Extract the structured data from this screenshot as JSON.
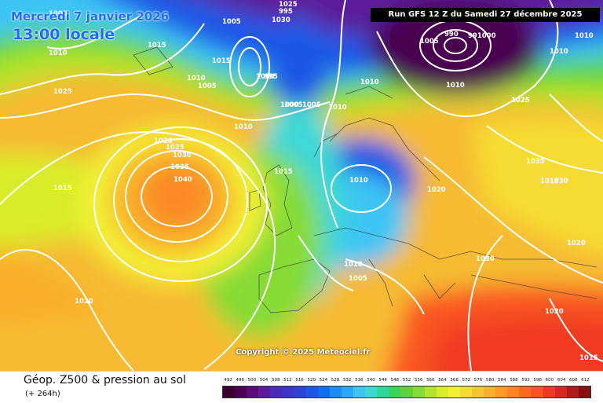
{
  "header": {
    "date": "Mercredi 7 janvier 2026",
    "time": "13:00 locale",
    "run": "Run GFS 12 Z du Samedi 27 décembre 2025"
  },
  "copyright": "Copyright © 2025 Meteociel.fr",
  "footer": {
    "product": "Géop. Z500 & pression au sol",
    "lead": "(+ 264h)"
  },
  "legend": {
    "levels": [
      "492",
      "496",
      "500",
      "504",
      "508",
      "512",
      "516",
      "520",
      "524",
      "528",
      "532",
      "536",
      "540",
      "544",
      "548",
      "552",
      "556",
      "560",
      "564",
      "568",
      "572",
      "576",
      "580",
      "584",
      "588",
      "592",
      "596",
      "600",
      "604",
      "608",
      "612"
    ],
    "colors": [
      "#3a0030",
      "#4a0050",
      "#5a0b78",
      "#5b1a9a",
      "#4a2cb8",
      "#3a36c8",
      "#2c43d8",
      "#1c58e6",
      "#0d70f0",
      "#1a8cf5",
      "#2aa8f7",
      "#3ec5f5",
      "#3dd8d6",
      "#2fd69a",
      "#38d45c",
      "#5ad43c",
      "#86dc34",
      "#b2e42c",
      "#d9ec2a",
      "#f2f034",
      "#f6dc32",
      "#f8c630",
      "#fab02c",
      "#fb9a28",
      "#fc8424",
      "#fc6a20",
      "#fa5420",
      "#f03a20",
      "#d82620",
      "#b01a1a",
      "#8a1010"
    ]
  },
  "isobars": [
    "1000",
    "995",
    "1005",
    "1015",
    "1010",
    "1025",
    "1030",
    "1015",
    "1010",
    "1005",
    "1000",
    "995",
    "1010",
    "1005",
    "1025",
    "1005",
    "1010",
    "1000",
    "1010",
    "1020",
    "1025",
    "1030",
    "1035",
    "1040",
    "1015",
    "1015",
    "1010",
    "1020",
    "1010",
    "1005",
    "1020",
    "1030",
    "1025",
    "990",
    "991000",
    "1010",
    "1005",
    "1010",
    "1010",
    "1020",
    "1015",
    "1025",
    "1035",
    "1030",
    "1020",
    "1015"
  ]
}
